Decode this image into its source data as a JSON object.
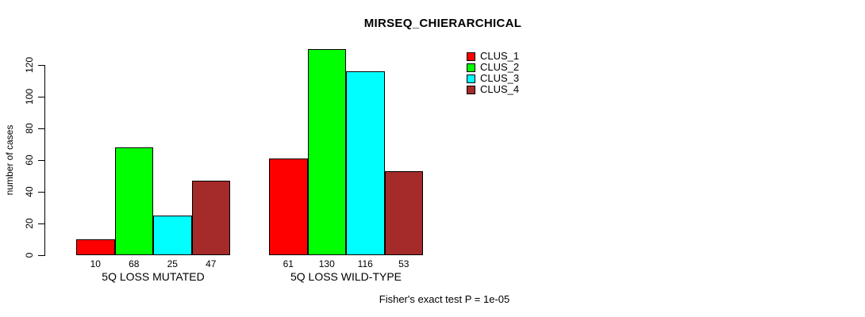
{
  "chart_data": {
    "type": "bar",
    "title": "MIRSEQ_CHIERARCHICAL",
    "ylabel": "number of cases",
    "xlabel": "",
    "categories": [
      "5Q LOSS MUTATED",
      "5Q LOSS WILD-TYPE"
    ],
    "series": [
      {
        "name": "CLUS_1",
        "color": "#ff0000",
        "values": [
          10,
          61
        ]
      },
      {
        "name": "CLUS_2",
        "color": "#00ff00",
        "values": [
          68,
          130
        ]
      },
      {
        "name": "CLUS_3",
        "color": "#00ffff",
        "values": [
          25,
          116
        ]
      },
      {
        "name": "CLUS_4",
        "color": "#a52a2a",
        "values": [
          47,
          53
        ]
      }
    ],
    "yticks": [
      0,
      20,
      40,
      60,
      80,
      100,
      120
    ],
    "ylim": [
      0,
      130
    ],
    "bar_value_labels_shown": true,
    "legend": {
      "position": "top-right",
      "entries": [
        "CLUS_1",
        "CLUS_2",
        "CLUS_3",
        "CLUS_4"
      ]
    },
    "annotation": "Fisher's exact test P = 1e-05",
    "grid": false,
    "background_color": "#ffffff",
    "bar_border_color": "#000000",
    "ytick_label_orientation": "rotated-90"
  }
}
